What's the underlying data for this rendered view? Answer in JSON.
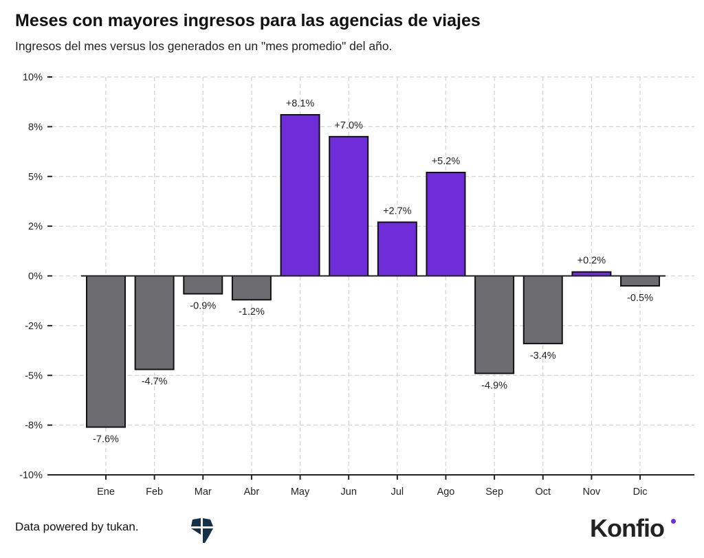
{
  "title": "Meses con mayores ingresos para las agencias de viajes",
  "subtitle": "Ingresos del mes versus los generados en un \"mes promedio\" del año.",
  "footer": {
    "credit": "Data powered by tukan.",
    "brand": "Konfio",
    "tukan_logo": "tukan-logo"
  },
  "colors": {
    "positive": "#6f2dd9",
    "negative": "#6d6d71",
    "grid": "#d4d4d4",
    "axis": "#222222"
  },
  "chart_data": {
    "type": "bar",
    "title": "Meses con mayores ingresos para las agencias de viajes",
    "subtitle": "Ingresos del mes versus los generados en un \"mes promedio\" del año.",
    "categories": [
      "Ene",
      "Feb",
      "Mar",
      "Abr",
      "May",
      "Jun",
      "Jul",
      "Ago",
      "Sep",
      "Oct",
      "Nov",
      "Dic"
    ],
    "values": [
      -7.6,
      -4.7,
      -0.9,
      -1.2,
      8.1,
      7.0,
      2.7,
      5.2,
      -4.9,
      -3.4,
      0.2,
      -0.5
    ],
    "data_labels": [
      "-7.6%",
      "-4.7%",
      "-0.9%",
      "-1.2%",
      "+8.1%",
      "+7.0%",
      "+2.7%",
      "+5.2%",
      "-4.9%",
      "-3.4%",
      "+0.2%",
      "-0.5%"
    ],
    "yticks": [
      10,
      7.5,
      5,
      2.5,
      0,
      -2.5,
      -5,
      -7.5,
      -10
    ],
    "ytick_labels": [
      "10%",
      "8%",
      "5%",
      "2%",
      "0%",
      "-2%",
      "-5%",
      "-8%",
      "-10%"
    ],
    "ylim": [
      -10,
      10
    ],
    "xlabel": "",
    "ylabel": "",
    "grid": true
  }
}
